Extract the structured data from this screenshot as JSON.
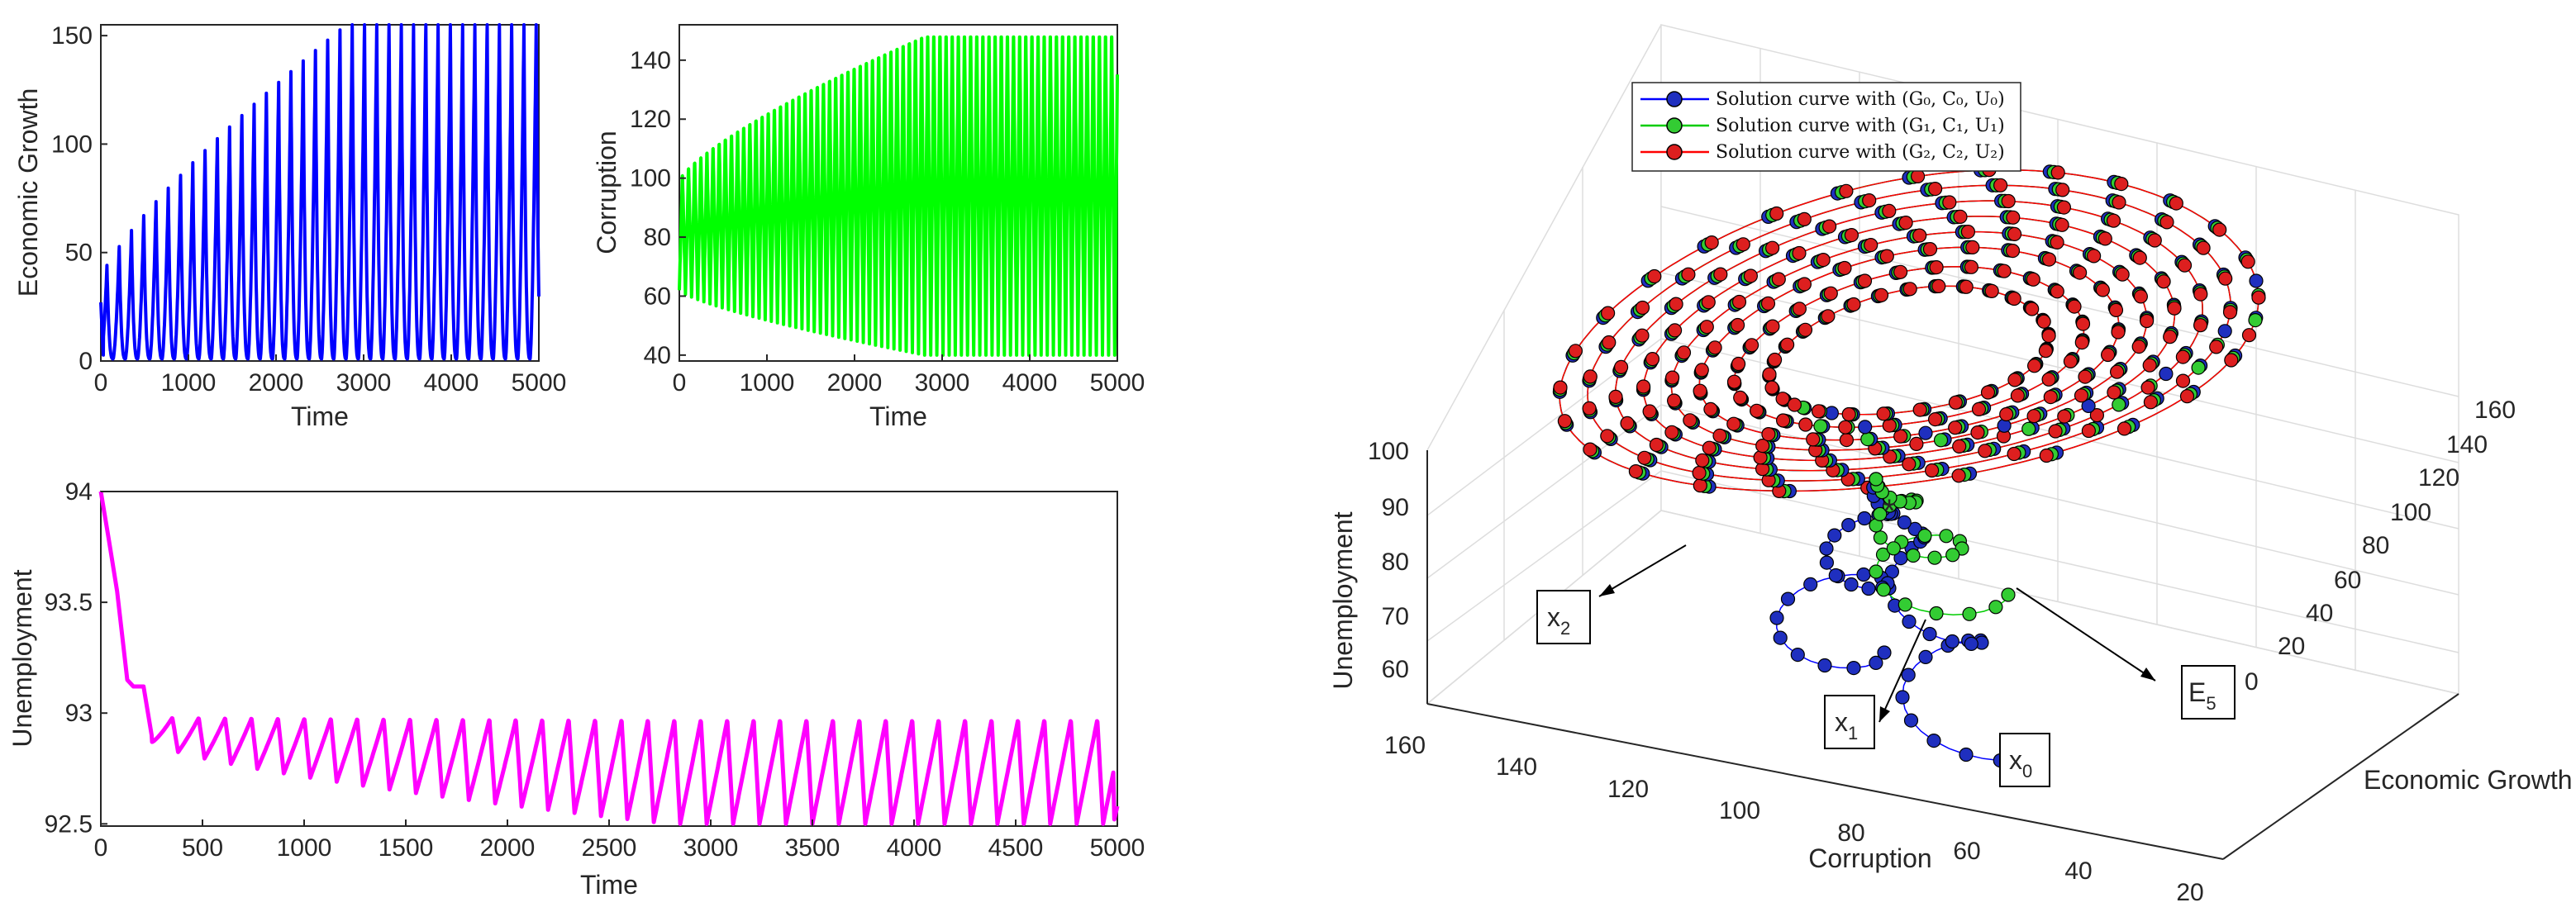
{
  "chart_data": [
    {
      "type": "line",
      "id": "growth",
      "xlabel": "Time",
      "ylabel": "Economic Growth",
      "xlim": [
        0,
        5000
      ],
      "ylim": [
        0,
        155
      ],
      "xticks": [
        "0",
        "1000",
        "2000",
        "3000",
        "4000",
        "5000"
      ],
      "yticks": [
        "0",
        "50",
        "100",
        "150"
      ],
      "series": [
        {
          "name": "Economic Growth",
          "color": "#0000ff",
          "oscillation": {
            "period": 140,
            "start_value": 27,
            "trough": 1,
            "peak_start": 38,
            "peak_max": 155,
            "saturation_time": 2800
          }
        }
      ]
    },
    {
      "type": "line",
      "id": "corruption",
      "xlabel": "Time",
      "ylabel": "Corruption",
      "xlim": [
        0,
        5000
      ],
      "ylim": [
        38,
        152
      ],
      "xticks": [
        "0",
        "1000",
        "2000",
        "3000",
        "4000",
        "5000"
      ],
      "yticks": [
        "40",
        "60",
        "80",
        "100",
        "120",
        "140"
      ],
      "series": [
        {
          "name": "Corruption",
          "color": "#00ff00",
          "oscillation": {
            "period": 70,
            "start_high": 100,
            "start_low": 62,
            "end_high": 151,
            "end_low": 40,
            "saturation_time": 2800
          }
        }
      ]
    },
    {
      "type": "line",
      "id": "unemployment",
      "xlabel": "Time",
      "ylabel": "Unemployment",
      "xlim": [
        0,
        5000
      ],
      "ylim": [
        92.49,
        94
      ],
      "xticks": [
        "0",
        "500",
        "1000",
        "1500",
        "2000",
        "2500",
        "3000",
        "3500",
        "4000",
        "4500",
        "5000"
      ],
      "yticks": [
        "92.5",
        "93",
        "93.5",
        "94"
      ],
      "series": [
        {
          "name": "Unemployment",
          "color": "#ff00ff",
          "points": [
            [
              0,
              94.0
            ],
            [
              40,
              93.78
            ],
            [
              80,
              93.55
            ],
            [
              130,
              93.15
            ],
            [
              160,
              93.12
            ],
            [
              210,
              93.12
            ],
            [
              250,
              92.9
            ]
          ],
          "oscillation": {
            "period": 130,
            "start_high": 92.98,
            "start_low": 92.87,
            "end_high": 92.97,
            "end_low": 92.5,
            "saturation_time": 2800
          }
        }
      ]
    },
    {
      "type": "scatter",
      "id": "phase-3d",
      "xlabel": "Corruption",
      "ylabel": "Economic Growth",
      "zlabel": "Unemployment",
      "xticks": [
        "160",
        "140",
        "120",
        "100",
        "80",
        "60",
        "40",
        "20"
      ],
      "yticks": [
        "0",
        "20",
        "40",
        "60",
        "80",
        "100",
        "120",
        "140",
        "160"
      ],
      "zticks": [
        "60",
        "70",
        "80",
        "90",
        "100"
      ],
      "legend": {
        "position": "top-left",
        "entries": [
          {
            "label": "Solution curve with (G₀, C₀, U₀)",
            "line_color": "#0000ff",
            "marker_color": "#1f2fbf"
          },
          {
            "label": "Solution curve with (G₁, C₁, U₁)",
            "line_color": "#00cc00",
            "marker_color": "#33cc33"
          },
          {
            "label": "Solution curve with (G₂, C₂, U₂)",
            "line_color": "#ff0000",
            "marker_color": "#dd1f1f"
          }
        ]
      },
      "annotations": [
        {
          "name": "x2",
          "base": "x",
          "sub": "2"
        },
        {
          "name": "x1",
          "base": "x",
          "sub": "1"
        },
        {
          "name": "x0",
          "base": "x",
          "sub": "0"
        },
        {
          "name": "E5",
          "base": "E",
          "sub": "5"
        }
      ],
      "equilibrium_marker": "*"
    }
  ]
}
